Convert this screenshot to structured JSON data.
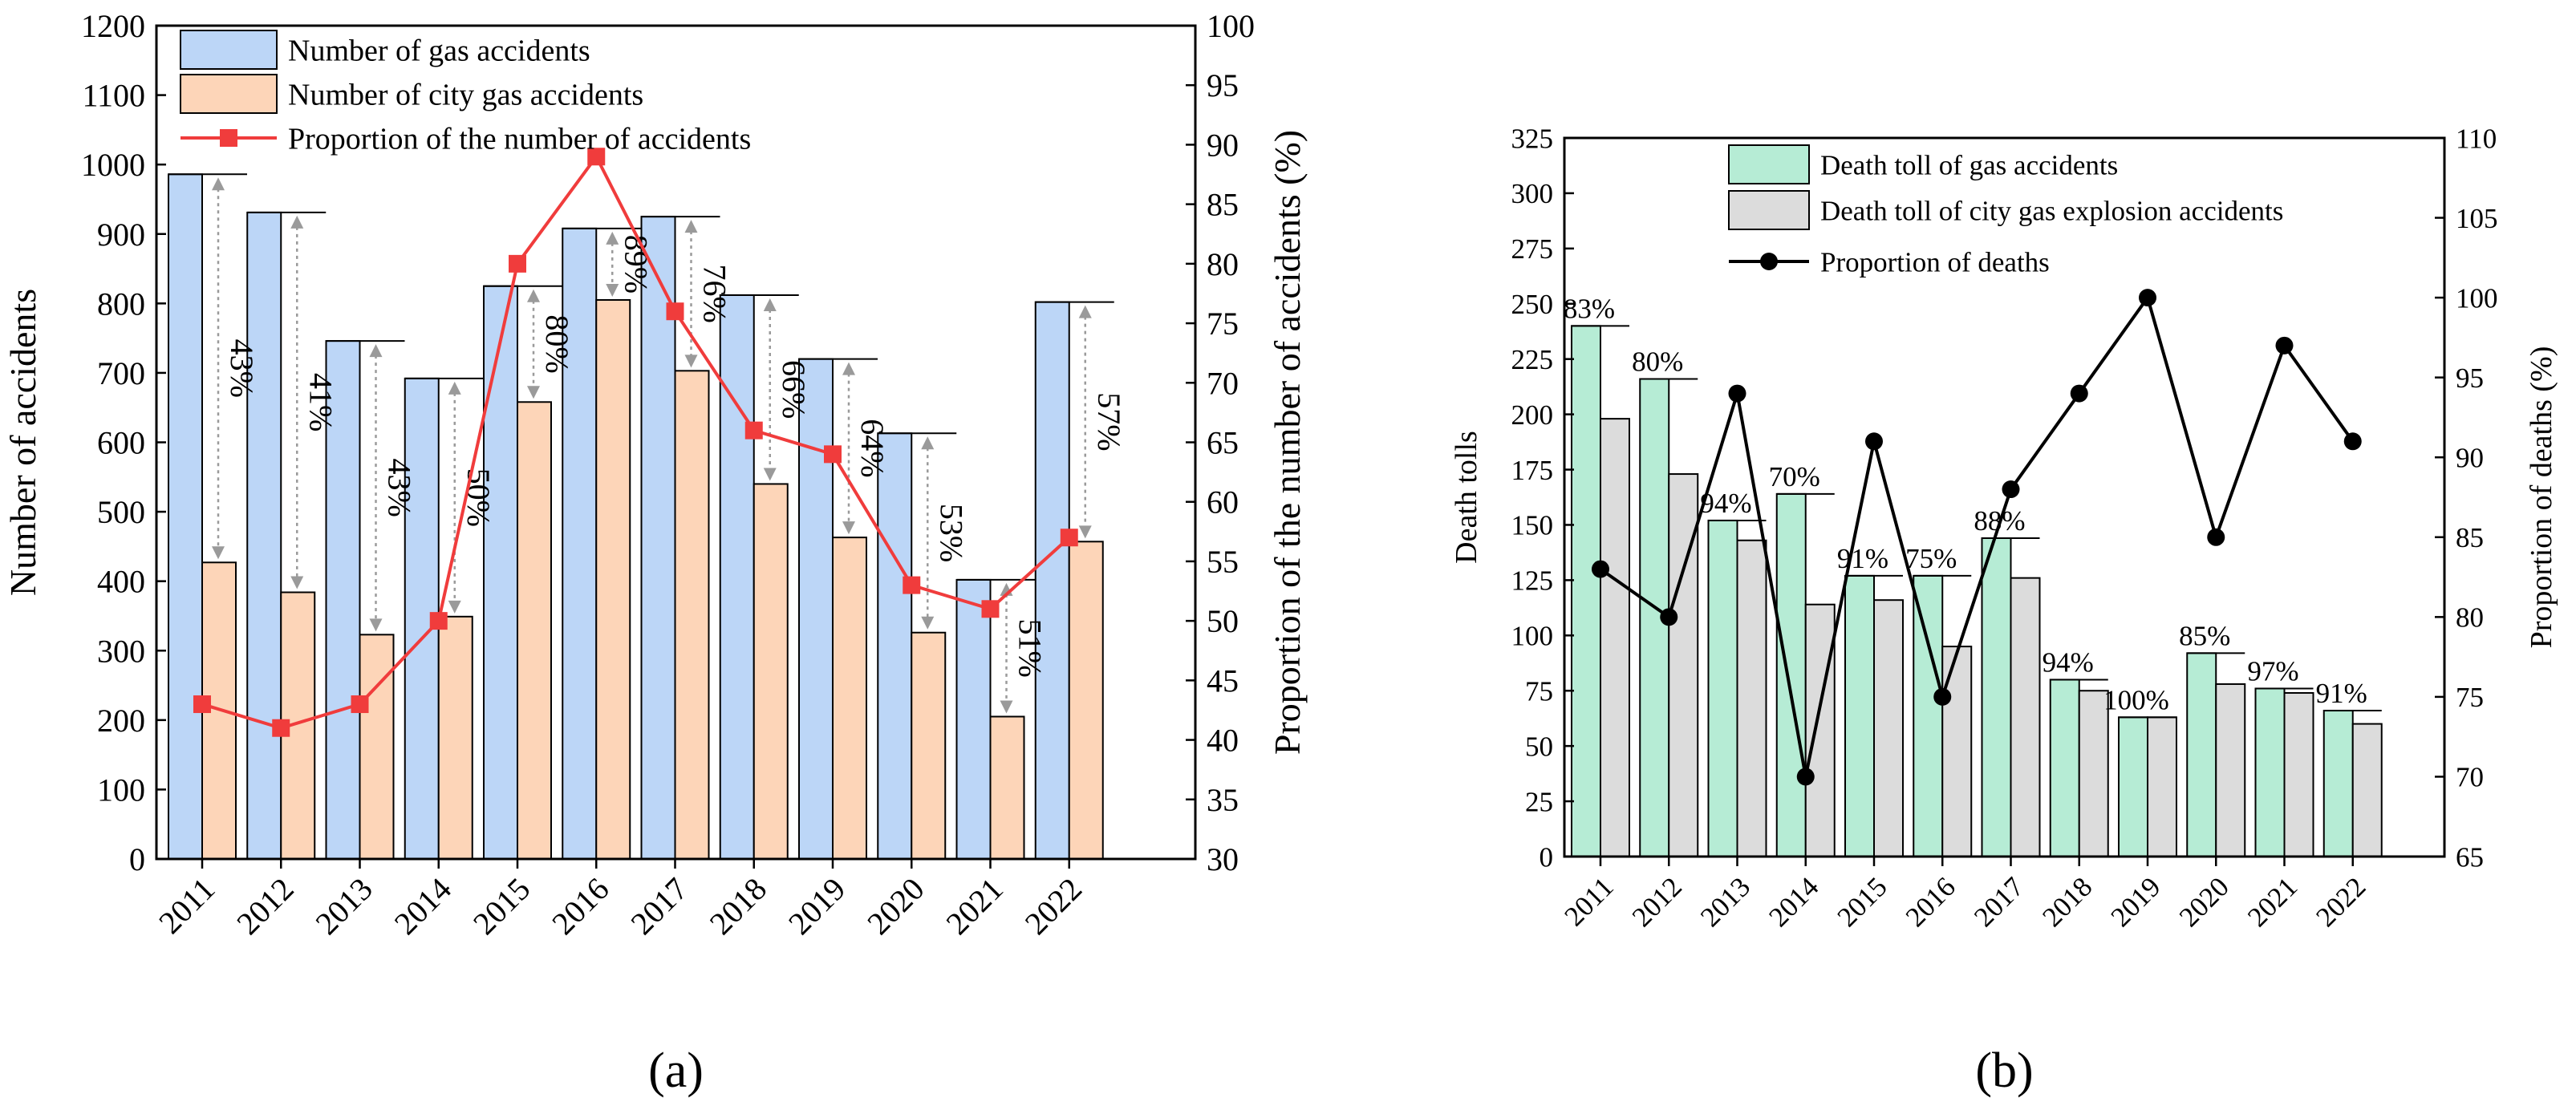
{
  "chart_data": [
    {
      "type": "bar",
      "panel_label": "(a)",
      "categories": [
        "2011",
        "2012",
        "2013",
        "2014",
        "2015",
        "2016",
        "2017",
        "2018",
        "2019",
        "2020",
        "2021",
        "2022"
      ],
      "series": [
        {
          "name": "Number of gas accidents",
          "type": "bar",
          "axis": "left",
          "color": "#bcd6f7",
          "values": [
            986,
            931,
            746,
            692,
            825,
            908,
            925,
            812,
            720,
            613,
            402,
            802
          ]
        },
        {
          "name": "Number of city gas accidents",
          "type": "bar",
          "axis": "left",
          "color": "#fdd5b8",
          "values": [
            427,
            384,
            323,
            349,
            658,
            805,
            703,
            540,
            463,
            326,
            205,
            457
          ]
        },
        {
          "name": "Proportion of the number of accidents",
          "type": "line",
          "axis": "right",
          "color": "#f03c3c",
          "marker": "square",
          "values": [
            43,
            41,
            43,
            50,
            80,
            89,
            76,
            66,
            64,
            53,
            51,
            57
          ]
        }
      ],
      "annotations": [
        "43%",
        "41%",
        "43%",
        "50%",
        "80%",
        "89%",
        "76%",
        "66%",
        "64%",
        "53%",
        "51%",
        "57%"
      ],
      "ylabel": "Number of accidents",
      "y2label": "Proportion of the number of accidents (%)",
      "ylim": [
        0,
        1200
      ],
      "y2lim": [
        30,
        100
      ],
      "yticks": [
        "0",
        "100",
        "200",
        "300",
        "400",
        "500",
        "600",
        "700",
        "800",
        "900",
        "1000",
        "1100",
        "1200"
      ],
      "y2ticks": [
        "30",
        "35",
        "40",
        "45",
        "50",
        "55",
        "60",
        "65",
        "70",
        "75",
        "80",
        "85",
        "90",
        "95",
        "100"
      ],
      "legend_position": "top-left",
      "grid": false
    },
    {
      "type": "bar",
      "panel_label": "(b)",
      "categories": [
        "2011",
        "2012",
        "2013",
        "2014",
        "2015",
        "2016",
        "2017",
        "2018",
        "2019",
        "2020",
        "2021",
        "2022"
      ],
      "series": [
        {
          "name": "Death toll of gas accidents",
          "type": "bar",
          "axis": "left",
          "color": "#b6ecd5",
          "values": [
            240,
            216,
            152,
            164,
            127,
            127,
            144,
            80,
            63,
            92,
            76,
            66
          ]
        },
        {
          "name": "Death toll of city gas explosion accidents",
          "type": "bar",
          "axis": "left",
          "color": "#dcdcdc",
          "values": [
            198,
            173,
            143,
            114,
            116,
            95,
            126,
            75,
            63,
            78,
            74,
            60
          ]
        },
        {
          "name": "Proportion of deaths",
          "type": "line",
          "axis": "right",
          "color": "#000000",
          "marker": "circle",
          "values": [
            83,
            80,
            94,
            70,
            91,
            75,
            88,
            94,
            100,
            85,
            97,
            91
          ]
        }
      ],
      "annotations": [
        "83%",
        "80%",
        "94%",
        "70%",
        "91%",
        "75%",
        "88%",
        "94%",
        "100%",
        "85%",
        "97%",
        "91%"
      ],
      "ylabel": "Death tolls",
      "y2label": "Proportion of deaths (%)",
      "ylim": [
        0,
        325
      ],
      "y2lim": [
        65,
        110
      ],
      "yticks": [
        "0",
        "25",
        "50",
        "75",
        "100",
        "125",
        "150",
        "175",
        "200",
        "225",
        "250",
        "275",
        "300",
        "325"
      ],
      "y2ticks": [
        "65",
        "70",
        "75",
        "80",
        "85",
        "90",
        "95",
        "100",
        "105",
        "110"
      ],
      "legend_position": "top-left",
      "grid": false
    }
  ]
}
